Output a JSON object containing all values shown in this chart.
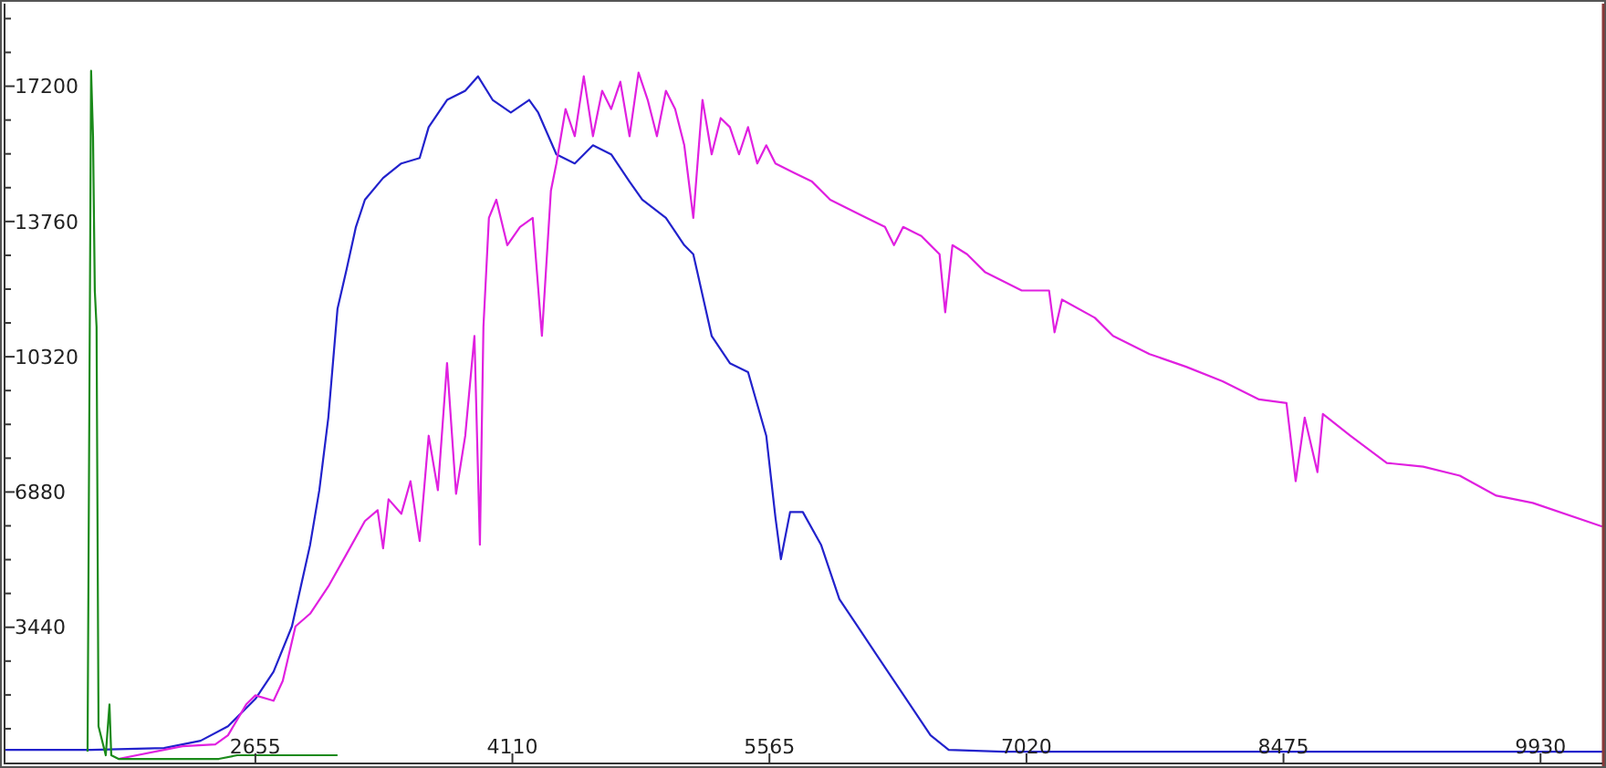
{
  "chart_data": {
    "type": "line",
    "xlim": [
      1230,
      10280
    ],
    "ylim": [
      0,
      19300
    ],
    "xticks": [
      2655,
      4110,
      5565,
      7020,
      8475,
      9930
    ],
    "yticks": [
      {
        "value": 860,
        "label": null
      },
      {
        "value": 1720,
        "label": null
      },
      {
        "value": 2580,
        "label": null
      },
      3440,
      {
        "value": 4300,
        "label": null
      },
      {
        "value": 5160,
        "label": null
      },
      {
        "value": 6020,
        "label": null
      },
      6880,
      {
        "value": 7740,
        "label": null
      },
      {
        "value": 8600,
        "label": null
      },
      {
        "value": 9460,
        "label": null
      },
      10320,
      {
        "value": 11180,
        "label": null
      },
      {
        "value": 12040,
        "label": null
      },
      {
        "value": 12900,
        "label": null
      },
      13760,
      {
        "value": 14620,
        "label": null
      },
      {
        "value": 15480,
        "label": null
      },
      {
        "value": 16340,
        "label": null
      },
      17200,
      {
        "value": 18060,
        "label": null
      },
      {
        "value": 18920,
        "label": null
      }
    ],
    "series": [
      {
        "color": "#2222cc",
        "x": [
          1230,
          1725,
          2138,
          2345,
          2500,
          2655,
          2758,
          2862,
          2965,
          3017,
          3068,
          3120,
          3172,
          3224,
          3275,
          3378,
          3481,
          3585,
          3636,
          3740,
          3843,
          3915,
          3998,
          4101,
          4205,
          4256,
          4359,
          4463,
          4566,
          4669,
          4773,
          4845,
          4979,
          5083,
          5134,
          5238,
          5341,
          5444,
          5547,
          5599,
          5630,
          5682,
          5754,
          5857,
          5961,
          6064,
          6167,
          6270,
          6374,
          6477,
          6580,
          6890,
          7407,
          8440,
          9473,
          10280
        ],
        "values": [
          323,
          323,
          369,
          554,
          923,
          1616,
          2309,
          3463,
          5540,
          6926,
          8772,
          11543,
          12558,
          13620,
          14313,
          14867,
          15236,
          15374,
          16159,
          16852,
          17083,
          17452,
          16852,
          16529,
          16852,
          16529,
          15467,
          15236,
          15698,
          15467,
          14774,
          14313,
          13851,
          13158,
          12928,
          10850,
          10157,
          9927,
          8311,
          6233,
          5171,
          6371,
          6371,
          5540,
          4155,
          3463,
          2770,
          2078,
          1385,
          693,
          323,
          277,
          277,
          277,
          277,
          277
        ]
      },
      {
        "color": "#e020e0",
        "x": [
          1880,
          2242,
          2428,
          2500,
          2603,
          2655,
          2758,
          2810,
          2882,
          2965,
          3068,
          3172,
          3275,
          3347,
          3378,
          3409,
          3481,
          3533,
          3585,
          3636,
          3688,
          3740,
          3791,
          3843,
          3895,
          3926,
          3946,
          3977,
          4019,
          4081,
          4153,
          4225,
          4277,
          4328,
          4359,
          4411,
          4463,
          4514,
          4566,
          4618,
          4669,
          4721,
          4773,
          4824,
          4876,
          4928,
          4979,
          5031,
          5083,
          5134,
          5186,
          5238,
          5289,
          5341,
          5393,
          5444,
          5496,
          5547,
          5599,
          5702,
          5806,
          5909,
          6012,
          6116,
          6219,
          6270,
          6322,
          6425,
          6528,
          6560,
          6601,
          6684,
          6787,
          6890,
          6993,
          7148,
          7179,
          7221,
          7407,
          7510,
          7717,
          7924,
          8130,
          8337,
          8492,
          8544,
          8595,
          8667,
          8698,
          8853,
          9060,
          9266,
          9473,
          9680,
          9886,
          10279
        ],
        "values": [
          92,
          416,
          462,
          693,
          1477,
          1708,
          1570,
          2078,
          3463,
          3786,
          4478,
          5310,
          6141,
          6418,
          5448,
          6695,
          6325,
          7156,
          5633,
          8311,
          6926,
          10157,
          6833,
          8311,
          10850,
          5540,
          11081,
          13851,
          14313,
          13158,
          13620,
          13851,
          10850,
          14544,
          15236,
          16621,
          15929,
          17452,
          15929,
          17083,
          16621,
          17314,
          15929,
          17545,
          16852,
          15929,
          17083,
          16621,
          15698,
          13851,
          16852,
          15467,
          16390,
          16159,
          15467,
          16159,
          15236,
          15698,
          15236,
          15005,
          14774,
          14313,
          14082,
          13851,
          13620,
          13158,
          13620,
          13389,
          12928,
          11450,
          13158,
          12928,
          12466,
          12235,
          12004,
          12004,
          10942,
          11773,
          11312,
          10850,
          10388,
          10065,
          9696,
          9234,
          9142,
          7156,
          8772,
          7387,
          8865,
          8311,
          7618,
          7526,
          7295,
          6787,
          6602,
          6002
        ]
      },
      {
        "color": "#1a8a1a",
        "x": [
          1705,
          1725,
          1736,
          1746,
          1756,
          1767,
          1808,
          1829,
          1839,
          1880,
          2448,
          2552,
          3120
        ],
        "values": [
          277,
          17591,
          15929,
          12004,
          11081,
          923,
          185,
          1477,
          185,
          92,
          92,
          185,
          185
        ]
      }
    ]
  }
}
